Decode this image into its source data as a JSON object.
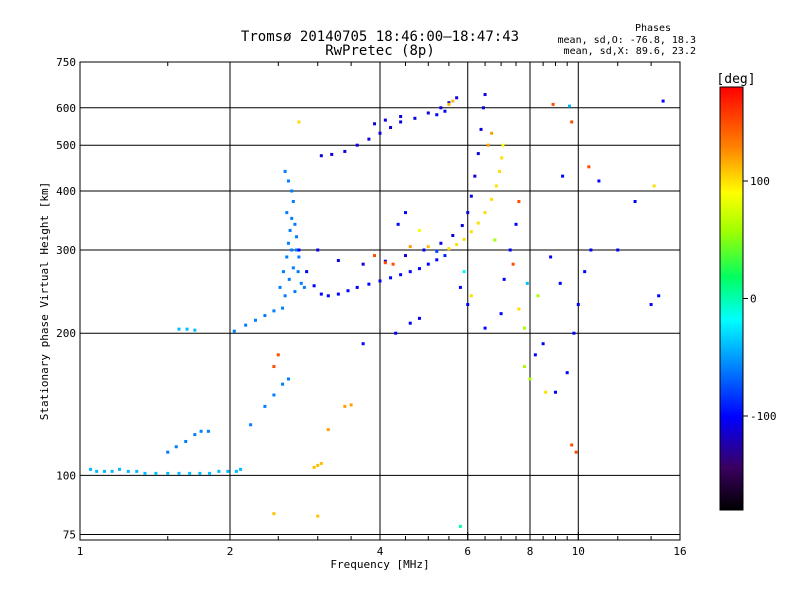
{
  "chart_data": {
    "type": "scatter",
    "title": "Tromsø 20140705 18:46:00–18:47:43",
    "subtitle": "RwPretec (8p)",
    "phase_title": "Phases",
    "phase_stats": [
      "mean, sd,O: -76.8, 18.3",
      "mean, sd,X:  89.6, 23.2"
    ],
    "xlabel": "Frequency [MHz]",
    "ylabel": "Stationary phase Virtual Height [km]",
    "x_scale": "log",
    "y_scale": "log",
    "xlim": [
      1,
      16
    ],
    "ylim": [
      73,
      750
    ],
    "x_ticks": [
      1,
      2,
      4,
      6,
      8,
      10,
      16
    ],
    "x_tick_labels": [
      "1",
      "2",
      "4",
      "6",
      "8",
      "10",
      "16"
    ],
    "x_minor_ticks": [
      1.5,
      2.5,
      3,
      3.5,
      4.5,
      5,
      5.5,
      6.5,
      7,
      7.5,
      8.5,
      9,
      9.5,
      12,
      14
    ],
    "y_ticks": [
      75,
      100,
      200,
      300,
      400,
      500,
      600,
      750
    ],
    "y_tick_labels": [
      "75",
      "100",
      "200",
      "300",
      "400",
      "500",
      "600",
      "750"
    ],
    "grid": true,
    "colorbar": {
      "label": "[deg]",
      "range": [
        -180,
        180
      ],
      "ticks": [
        100,
        0,
        -100
      ],
      "tick_labels": [
        "100",
        "0",
        "-100"
      ]
    },
    "series": [
      {
        "points": [
          [
            1.05,
            103,
            -40
          ],
          [
            1.08,
            102,
            -40
          ],
          [
            1.12,
            102,
            -40
          ],
          [
            1.16,
            102,
            -40
          ],
          [
            1.2,
            103,
            -40
          ],
          [
            1.25,
            102,
            -40
          ],
          [
            1.3,
            102,
            -40
          ],
          [
            1.35,
            101,
            -40
          ],
          [
            1.42,
            101,
            -40
          ],
          [
            1.5,
            101,
            -40
          ],
          [
            1.58,
            101,
            -40
          ],
          [
            1.66,
            101,
            -40
          ],
          [
            1.74,
            101,
            -40
          ],
          [
            1.82,
            101,
            -40
          ],
          [
            1.9,
            102,
            -40
          ],
          [
            1.98,
            102,
            -40
          ],
          [
            2.06,
            102,
            -40
          ],
          [
            2.1,
            103,
            -40
          ],
          [
            1.5,
            112,
            -60
          ],
          [
            1.56,
            115,
            -60
          ],
          [
            1.63,
            118,
            -60
          ],
          [
            1.7,
            122,
            -60
          ],
          [
            1.75,
            124,
            -60
          ],
          [
            1.81,
            124,
            -60
          ],
          [
            1.58,
            204,
            -40
          ],
          [
            1.64,
            204,
            -40
          ],
          [
            1.7,
            203,
            -40
          ],
          [
            2.04,
            202,
            -60
          ],
          [
            2.15,
            208,
            -60
          ],
          [
            2.25,
            213,
            -60
          ],
          [
            2.35,
            218,
            -60
          ],
          [
            2.45,
            223,
            -60
          ],
          [
            2.55,
            226,
            -60
          ],
          [
            2.2,
            128,
            -60
          ],
          [
            2.35,
            140,
            -60
          ],
          [
            2.45,
            148,
            -60
          ],
          [
            2.55,
            156,
            -60
          ],
          [
            2.62,
            160,
            -60
          ]
        ]
      },
      {
        "points": [
          [
            2.52,
            250,
            -60
          ],
          [
            2.56,
            270,
            -60
          ],
          [
            2.6,
            290,
            -60
          ],
          [
            2.62,
            310,
            -60
          ],
          [
            2.64,
            330,
            -60
          ],
          [
            2.66,
            350,
            -60
          ],
          [
            2.68,
            380,
            -60
          ],
          [
            2.7,
            340,
            -60
          ],
          [
            2.72,
            300,
            -60
          ],
          [
            2.74,
            270,
            -60
          ],
          [
            2.78,
            255,
            -60
          ],
          [
            2.82,
            250,
            -60
          ],
          [
            2.66,
            400,
            -60
          ],
          [
            2.62,
            420,
            -60
          ],
          [
            2.58,
            240,
            -60
          ],
          [
            2.7,
            245,
            -60
          ],
          [
            2.75,
            290,
            -60
          ],
          [
            2.63,
            260,
            -60
          ],
          [
            2.68,
            275,
            -60
          ],
          [
            2.72,
            320,
            -60
          ],
          [
            2.6,
            360,
            -60
          ],
          [
            2.66,
            300,
            -60
          ],
          [
            2.58,
            440,
            -60
          ]
        ]
      },
      {
        "points": [
          [
            2.75,
            300,
            -100
          ],
          [
            2.85,
            270,
            -100
          ],
          [
            2.95,
            252,
            -100
          ],
          [
            3.05,
            242,
            -100
          ],
          [
            3.15,
            240,
            -100
          ],
          [
            3.3,
            242,
            -100
          ],
          [
            3.45,
            246,
            -100
          ],
          [
            3.6,
            250,
            -100
          ],
          [
            3.8,
            254,
            -100
          ],
          [
            4.0,
            258,
            -100
          ],
          [
            4.2,
            262,
            -100
          ],
          [
            4.4,
            266,
            -100
          ],
          [
            4.6,
            270,
            -100
          ],
          [
            4.8,
            274,
            -100
          ],
          [
            5.0,
            280,
            -100
          ],
          [
            5.2,
            286,
            -100
          ],
          [
            5.4,
            292,
            -90
          ]
        ]
      },
      {
        "points": [
          [
            5.2,
            298,
            -80
          ],
          [
            5.5,
            302,
            100
          ],
          [
            5.7,
            308,
            100
          ],
          [
            5.9,
            316,
            100
          ],
          [
            6.1,
            328,
            100
          ],
          [
            6.3,
            342,
            100
          ],
          [
            6.5,
            360,
            100
          ],
          [
            6.7,
            384,
            100
          ],
          [
            6.85,
            410,
            100
          ],
          [
            6.95,
            440,
            100
          ],
          [
            7.02,
            470,
            100
          ],
          [
            7.06,
            500,
            90
          ]
        ]
      },
      {
        "points": [
          [
            3.0,
            300,
            -110
          ],
          [
            3.3,
            285,
            -110
          ],
          [
            3.7,
            280,
            -110
          ],
          [
            4.1,
            284,
            -110
          ],
          [
            4.5,
            292,
            -110
          ],
          [
            4.9,
            300,
            -110
          ],
          [
            5.3,
            310,
            -110
          ],
          [
            5.6,
            322,
            -110
          ],
          [
            5.85,
            338,
            -110
          ],
          [
            6.0,
            360,
            -110
          ],
          [
            6.1,
            390,
            -110
          ],
          [
            6.2,
            430,
            -110
          ],
          [
            6.3,
            480,
            -110
          ],
          [
            6.38,
            540,
            -110
          ],
          [
            6.45,
            600,
            -110
          ],
          [
            6.5,
            640,
            -110
          ]
        ]
      },
      {
        "points": [
          [
            3.05,
            475,
            -110
          ],
          [
            3.2,
            478,
            -110
          ],
          [
            3.4,
            485,
            -110
          ],
          [
            3.6,
            500,
            -110
          ],
          [
            3.8,
            515,
            -110
          ],
          [
            4.0,
            530,
            -110
          ],
          [
            4.2,
            545,
            -110
          ],
          [
            4.4,
            560,
            -110
          ],
          [
            4.7,
            570,
            -110
          ],
          [
            5.0,
            585,
            -110
          ],
          [
            5.3,
            600,
            -110
          ],
          [
            5.5,
            615,
            -110
          ],
          [
            5.7,
            630,
            -110
          ],
          [
            3.9,
            555,
            -110
          ],
          [
            4.1,
            565,
            -110
          ],
          [
            4.4,
            575,
            -110
          ]
        ]
      },
      {
        "points": [
          [
            3.0,
            105,
            110
          ],
          [
            3.05,
            106,
            110
          ],
          [
            2.95,
            104,
            110
          ],
          [
            3.4,
            140,
            120
          ],
          [
            3.5,
            141,
            120
          ],
          [
            3.15,
            125,
            120
          ],
          [
            3.9,
            292,
            150
          ],
          [
            4.1,
            282,
            150
          ],
          [
            4.25,
            280,
            150
          ],
          [
            4.6,
            305,
            120
          ],
          [
            5.0,
            305,
            110
          ],
          [
            4.8,
            330,
            90
          ],
          [
            5.5,
            610,
            110
          ],
          [
            5.6,
            620,
            110
          ],
          [
            6.6,
            500,
            120
          ],
          [
            6.7,
            530,
            120
          ]
        ]
      },
      {
        "points": [
          [
            2.5,
            180,
            150
          ],
          [
            2.45,
            170,
            150
          ],
          [
            4.35,
            340,
            -100
          ],
          [
            4.5,
            360,
            -100
          ],
          [
            3.7,
            190,
            -100
          ],
          [
            4.3,
            200,
            -100
          ],
          [
            4.6,
            210,
            -100
          ],
          [
            4.8,
            215,
            -100
          ],
          [
            5.2,
            580,
            -100
          ],
          [
            5.4,
            590,
            -100
          ],
          [
            5.8,
            250,
            -100
          ],
          [
            6.0,
            230,
            -100
          ],
          [
            6.5,
            205,
            -100
          ],
          [
            7.0,
            220,
            -100
          ],
          [
            7.1,
            260,
            -100
          ],
          [
            7.3,
            300,
            -100
          ],
          [
            7.5,
            340,
            -100
          ],
          [
            7.4,
            280,
            150
          ],
          [
            7.6,
            380,
            150
          ],
          [
            8.2,
            180,
            -100
          ],
          [
            8.5,
            190,
            -100
          ],
          [
            9.0,
            150,
            -100
          ],
          [
            9.5,
            165,
            -100
          ],
          [
            9.8,
            200,
            -100
          ],
          [
            10.0,
            230,
            -100
          ],
          [
            10.3,
            270,
            -100
          ],
          [
            10.6,
            300,
            -100
          ],
          [
            9.3,
            430,
            -100
          ],
          [
            9.7,
            560,
            150
          ],
          [
            11.0,
            420,
            -100
          ],
          [
            12.0,
            300,
            -100
          ],
          [
            13.0,
            380,
            -100
          ],
          [
            14.0,
            230,
            -100
          ],
          [
            14.5,
            240,
            -100
          ],
          [
            14.2,
            410,
            100
          ],
          [
            14.8,
            620,
            -100
          ],
          [
            8.8,
            290,
            -100
          ],
          [
            9.2,
            255,
            -100
          ],
          [
            7.6,
            225,
            100
          ],
          [
            7.8,
            205,
            60
          ],
          [
            8.3,
            240,
            60
          ],
          [
            10.5,
            450,
            150
          ],
          [
            8.9,
            610,
            150
          ],
          [
            9.6,
            605,
            -40
          ],
          [
            8.6,
            150,
            100
          ],
          [
            9.7,
            116,
            150
          ],
          [
            9.9,
            112,
            150
          ],
          [
            7.8,
            170,
            60
          ],
          [
            8.0,
            160,
            60
          ],
          [
            6.8,
            315,
            60
          ],
          [
            7.9,
            255,
            -40
          ],
          [
            5.8,
            78,
            0
          ],
          [
            2.45,
            83,
            110
          ],
          [
            3.0,
            82,
            110
          ],
          [
            2.75,
            560,
            100
          ],
          [
            6.1,
            240,
            100
          ],
          [
            5.9,
            270,
            -20
          ]
        ]
      }
    ]
  }
}
